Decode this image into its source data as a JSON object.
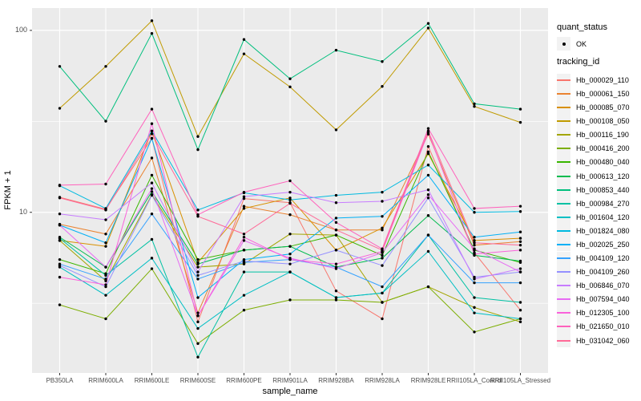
{
  "figure": {
    "background": "#FFFFFF",
    "panel_background": "#EBEBEB",
    "gridline_color": "#FFFFFF",
    "tick_mark_color": "#333333",
    "tick_label_color": "#4D4D4D",
    "axis_title_color": "#000000",
    "legend": {
      "quant_status": {
        "title": "quant_status",
        "items": [
          {
            "label": "OK",
            "symbol": "black-point"
          }
        ]
      },
      "tracking_id": {
        "title": "tracking_id"
      }
    }
  },
  "chart_data": {
    "type": "line",
    "title": "",
    "xlabel": "sample_name",
    "ylabel": "FPKM + 1",
    "yscale": "log10",
    "ylim": [
      1.31,
      132.7
    ],
    "y_major_ticks": [
      100,
      10
    ],
    "y_tick_labels": [
      "100",
      "10"
    ],
    "y_minor_gridlines": [
      31.62,
      3.162
    ],
    "grid": true,
    "legend_position": "right",
    "point_color": "#000000",
    "categories": [
      "PB350LA",
      "RRIM600LA",
      "RRIM600LE",
      "RRIM600SE",
      "RRIM600PE",
      "RRIM901LA",
      "RRIM928BA",
      "RRIM928LA",
      "RRIM928LE",
      "RRII105LA_Control",
      "RRII105LA_Stressed"
    ],
    "series": [
      {
        "name": "Hb_000029_110",
        "color": "#F8766D",
        "values": [
          12.1,
          10.4,
          25.5,
          2.5,
          11.9,
          11.3,
          3.7,
          2.6,
          23.0,
          6.0,
          2.9
        ]
      },
      {
        "name": "Hb_000061_150",
        "color": "#EA8331",
        "values": [
          8.6,
          7.6,
          19.9,
          2.8,
          10.8,
          9.7,
          8.0,
          8.0,
          26.9,
          6.6,
          6.9
        ]
      },
      {
        "name": "Hb_000085_070",
        "color": "#D89000",
        "values": [
          7.0,
          6.5,
          28.0,
          5.3,
          10.5,
          12.0,
          6.2,
          8.2,
          21.0,
          7.0,
          7.2
        ]
      },
      {
        "name": "Hb_000108_050",
        "color": "#C09B00",
        "values": [
          37.3,
          63.4,
          113.0,
          26.1,
          74.3,
          48.9,
          28.4,
          49.2,
          103.0,
          38.2,
          31.2
        ]
      },
      {
        "name": "Hb_000116_190",
        "color": "#A3A500",
        "values": [
          7.0,
          4.2,
          12.5,
          5.0,
          5.2,
          7.6,
          7.5,
          3.2,
          3.9,
          3.0,
          2.5
        ]
      },
      {
        "name": "Hb_000416_200",
        "color": "#7CAE00",
        "values": [
          3.1,
          2.6,
          4.9,
          1.9,
          2.9,
          3.3,
          3.3,
          3.2,
          3.9,
          2.2,
          2.6
        ]
      },
      {
        "name": "Hb_000480_040",
        "color": "#39B600",
        "values": [
          5.5,
          4.6,
          16.0,
          5.5,
          6.2,
          6.5,
          7.5,
          5.8,
          21.5,
          6.2,
          5.3
        ]
      },
      {
        "name": "Hb_000613_120",
        "color": "#00BB4E",
        "values": [
          7.3,
          5.0,
          13.0,
          5.2,
          6.2,
          6.5,
          5.0,
          5.6,
          9.6,
          5.8,
          5.4
        ]
      },
      {
        "name": "Hb_000853_440",
        "color": "#00BF7D",
        "values": [
          63.4,
          31.7,
          96.2,
          22.1,
          89.1,
          54.2,
          77.8,
          67.4,
          109.2,
          39.5,
          36.9
        ]
      },
      {
        "name": "Hb_000984_270",
        "color": "#00C1A3",
        "values": [
          7.2,
          4.5,
          7.1,
          1.6,
          4.7,
          4.7,
          3.4,
          3.6,
          7.5,
          3.4,
          3.2
        ]
      },
      {
        "name": "Hb_001604_120",
        "color": "#00BFC4",
        "values": [
          5.0,
          3.5,
          5.6,
          2.3,
          3.5,
          4.7,
          3.4,
          3.6,
          6.1,
          2.8,
          2.6
        ]
      },
      {
        "name": "Hb_001824_080",
        "color": "#00BAE0",
        "values": [
          14.0,
          10.5,
          28.0,
          10.3,
          12.8,
          11.7,
          12.4,
          12.9,
          18.2,
          10.0,
          10.1
        ]
      },
      {
        "name": "Hb_002025_250",
        "color": "#00B0F6",
        "values": [
          8.5,
          6.8,
          25.5,
          3.4,
          5.5,
          5.9,
          9.3,
          9.5,
          16.0,
          7.3,
          7.8
        ]
      },
      {
        "name": "Hb_004109_120",
        "color": "#35A2FF",
        "values": [
          5.2,
          4.3,
          9.8,
          4.3,
          5.3,
          5.5,
          5.0,
          3.9,
          7.5,
          4.1,
          4.1
        ]
      },
      {
        "name": "Hb_004109_260",
        "color": "#9590FF",
        "values": [
          5.1,
          3.9,
          12.4,
          4.5,
          5.4,
          5.2,
          6.2,
          5.1,
          12.0,
          4.4,
          4.7
        ]
      },
      {
        "name": "Hb_006846_070",
        "color": "#C77CFF",
        "values": [
          9.8,
          9.1,
          14.5,
          4.7,
          12.2,
          12.9,
          11.3,
          11.5,
          13.3,
          4.3,
          4.9
        ]
      },
      {
        "name": "Hb_007594_040",
        "color": "#E76BF3",
        "values": [
          8.5,
          5.0,
          13.5,
          2.7,
          7.0,
          5.6,
          4.9,
          6.0,
          12.5,
          6.3,
          4.7
        ]
      },
      {
        "name": "Hb_012305_100",
        "color": "#FA62DB",
        "values": [
          4.4,
          4.0,
          30.7,
          2.7,
          7.3,
          5.5,
          5.2,
          6.1,
          27.5,
          5.9,
          6.2
        ]
      },
      {
        "name": "Hb_021650_010",
        "color": "#FF62BC",
        "values": [
          14.1,
          14.3,
          36.9,
          9.7,
          12.9,
          14.9,
          8.8,
          6.3,
          28.9,
          10.5,
          10.8
        ]
      },
      {
        "name": "Hb_031042_060",
        "color": "#FF6A98",
        "values": [
          12.0,
          10.3,
          27.0,
          9.5,
          7.6,
          11.2,
          8.0,
          6.2,
          28.0,
          6.8,
          6.6
        ]
      }
    ]
  }
}
